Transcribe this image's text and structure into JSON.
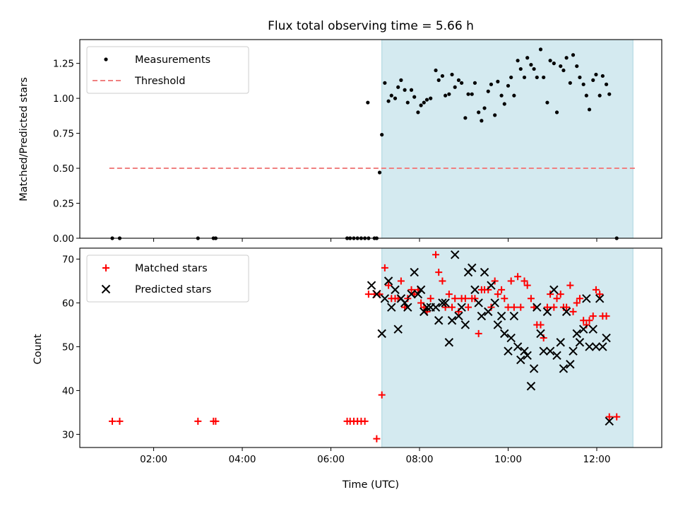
{
  "chart_data": [
    {
      "type": "scatter",
      "title": "Flux total observing time = 5.66 h",
      "xlabel": "",
      "ylabel": "Matched/Predicted stars",
      "xlim": [
        "00:20",
        "13:28"
      ],
      "ylim": [
        0,
        1.42
      ],
      "yticks": [
        "0.00",
        "0.25",
        "0.50",
        "0.75",
        "1.00",
        "1.25"
      ],
      "ytick_values": [
        0,
        0.25,
        0.5,
        0.75,
        1.0,
        1.25
      ],
      "xticks_values": [
        "02:00",
        "04:00",
        "06:00",
        "08:00",
        "10:00",
        "12:00"
      ],
      "xtick_labels_shown": false,
      "shaded_region": {
        "start": "07:09",
        "end": "12:49",
        "color": "#d4eaf0"
      },
      "legend": {
        "position": "top-left",
        "entries": [
          "Measurements",
          "Threshold"
        ]
      },
      "series": [
        {
          "name": "Measurements",
          "color": "#000000",
          "marker": "dot",
          "points": [
            [
              "01:04",
              0.0
            ],
            [
              "01:14",
              0.0
            ],
            [
              "03:00",
              0.0
            ],
            [
              "03:21",
              0.0
            ],
            [
              "03:24",
              0.0
            ],
            [
              "06:22",
              0.0
            ],
            [
              "06:26",
              0.0
            ],
            [
              "06:31",
              0.0
            ],
            [
              "06:36",
              0.0
            ],
            [
              "06:41",
              0.0
            ],
            [
              "06:46",
              0.0
            ],
            [
              "06:51",
              0.0
            ],
            [
              "06:59",
              0.0
            ],
            [
              "07:02",
              0.0
            ],
            [
              "06:50",
              0.97
            ],
            [
              "07:06",
              0.47
            ],
            [
              "07:09",
              0.74
            ],
            [
              "07:13",
              1.11
            ],
            [
              "07:18",
              0.98
            ],
            [
              "07:22",
              1.02
            ],
            [
              "07:27",
              1.0
            ],
            [
              "07:31",
              1.08
            ],
            [
              "07:35",
              1.13
            ],
            [
              "07:40",
              1.06
            ],
            [
              "07:44",
              0.97
            ],
            [
              "07:49",
              1.06
            ],
            [
              "07:53",
              1.01
            ],
            [
              "07:58",
              0.9
            ],
            [
              "08:02",
              0.95
            ],
            [
              "08:06",
              0.97
            ],
            [
              "08:10",
              0.99
            ],
            [
              "08:15",
              1.0
            ],
            [
              "08:22",
              1.2
            ],
            [
              "08:26",
              1.13
            ],
            [
              "08:31",
              1.16
            ],
            [
              "08:35",
              1.02
            ],
            [
              "08:40",
              1.03
            ],
            [
              "08:44",
              1.17
            ],
            [
              "08:48",
              1.08
            ],
            [
              "08:53",
              1.13
            ],
            [
              "08:57",
              1.11
            ],
            [
              "09:02",
              0.86
            ],
            [
              "09:06",
              1.03
            ],
            [
              "09:11",
              1.03
            ],
            [
              "09:15",
              1.11
            ],
            [
              "09:20",
              0.9
            ],
            [
              "09:24",
              0.84
            ],
            [
              "09:28",
              0.93
            ],
            [
              "09:33",
              1.05
            ],
            [
              "09:37",
              1.1
            ],
            [
              "09:42",
              0.88
            ],
            [
              "09:46",
              1.12
            ],
            [
              "09:51",
              1.02
            ],
            [
              "09:55",
              0.96
            ],
            [
              "10:00",
              1.09
            ],
            [
              "10:04",
              1.15
            ],
            [
              "10:08",
              1.02
            ],
            [
              "10:13",
              1.27
            ],
            [
              "10:17",
              1.21
            ],
            [
              "10:22",
              1.15
            ],
            [
              "10:26",
              1.29
            ],
            [
              "10:31",
              1.24
            ],
            [
              "10:35",
              1.21
            ],
            [
              "10:39",
              1.15
            ],
            [
              "10:44",
              1.35
            ],
            [
              "10:48",
              1.15
            ],
            [
              "10:53",
              0.97
            ],
            [
              "10:57",
              1.27
            ],
            [
              "11:02",
              1.25
            ],
            [
              "11:06",
              0.9
            ],
            [
              "11:11",
              1.23
            ],
            [
              "11:15",
              1.2
            ],
            [
              "11:19",
              1.29
            ],
            [
              "11:24",
              1.11
            ],
            [
              "11:28",
              1.31
            ],
            [
              "11:33",
              1.23
            ],
            [
              "11:37",
              1.15
            ],
            [
              "11:42",
              1.1
            ],
            [
              "11:46",
              1.02
            ],
            [
              "11:50",
              0.92
            ],
            [
              "11:55",
              1.13
            ],
            [
              "11:59",
              1.17
            ],
            [
              "12:04",
              1.02
            ],
            [
              "12:08",
              1.16
            ],
            [
              "12:13",
              1.1
            ],
            [
              "12:17",
              1.03
            ],
            [
              "12:27",
              0.0
            ]
          ]
        },
        {
          "name": "Threshold",
          "color": "#f08080",
          "style": "dashed",
          "points": [
            [
              "01:00",
              0.5
            ],
            [
              "12:52",
              0.5
            ]
          ]
        }
      ]
    },
    {
      "type": "scatter",
      "title": "",
      "xlabel": "Time (UTC)",
      "ylabel": "Count",
      "xlim": [
        "00:20",
        "13:28"
      ],
      "ylim": [
        27,
        72.5
      ],
      "yticks": [
        "30",
        "40",
        "50",
        "60",
        "70"
      ],
      "ytick_values": [
        30,
        40,
        50,
        60,
        70
      ],
      "xticks": [
        "02:00",
        "04:00",
        "06:00",
        "08:00",
        "10:00",
        "12:00"
      ],
      "shaded_region": {
        "start": "07:09",
        "end": "12:49",
        "color": "#d4eaf0"
      },
      "legend": {
        "position": "top-left",
        "entries": [
          "Matched stars",
          "Predicted stars"
        ]
      },
      "series": [
        {
          "name": "Matched stars",
          "color": "#ff0000",
          "marker": "plus",
          "points": [
            [
              "01:04",
              33
            ],
            [
              "01:14",
              33
            ],
            [
              "03:00",
              33
            ],
            [
              "03:21",
              33
            ],
            [
              "03:24",
              33
            ],
            [
              "06:22",
              33
            ],
            [
              "06:26",
              33
            ],
            [
              "06:31",
              33
            ],
            [
              "06:36",
              33
            ],
            [
              "06:41",
              33
            ],
            [
              "06:46",
              33
            ],
            [
              "06:51",
              62
            ],
            [
              "06:59",
              62
            ],
            [
              "07:02",
              29
            ],
            [
              "07:06",
              62
            ],
            [
              "07:09",
              39
            ],
            [
              "07:13",
              68
            ],
            [
              "07:18",
              64
            ],
            [
              "07:22",
              61
            ],
            [
              "07:27",
              61
            ],
            [
              "07:31",
              61
            ],
            [
              "07:35",
              65
            ],
            [
              "07:40",
              59
            ],
            [
              "07:44",
              61
            ],
            [
              "07:49",
              63
            ],
            [
              "07:53",
              62
            ],
            [
              "07:58",
              63
            ],
            [
              "08:02",
              60
            ],
            [
              "08:06",
              59
            ],
            [
              "08:10",
              58
            ],
            [
              "08:15",
              61
            ],
            [
              "08:22",
              71
            ],
            [
              "08:26",
              67
            ],
            [
              "08:31",
              65
            ],
            [
              "08:35",
              59
            ],
            [
              "08:40",
              62
            ],
            [
              "08:44",
              59
            ],
            [
              "08:48",
              61
            ],
            [
              "08:53",
              58
            ],
            [
              "08:57",
              61
            ],
            [
              "09:02",
              61
            ],
            [
              "09:06",
              59
            ],
            [
              "09:11",
              61
            ],
            [
              "09:15",
              61
            ],
            [
              "09:20",
              53
            ],
            [
              "09:24",
              63
            ],
            [
              "09:28",
              63
            ],
            [
              "09:33",
              63
            ],
            [
              "09:37",
              59
            ],
            [
              "09:42",
              65
            ],
            [
              "09:46",
              62
            ],
            [
              "09:51",
              63
            ],
            [
              "09:55",
              61
            ],
            [
              "10:00",
              59
            ],
            [
              "10:04",
              65
            ],
            [
              "10:08",
              59
            ],
            [
              "10:13",
              66
            ],
            [
              "10:17",
              59
            ],
            [
              "10:22",
              65
            ],
            [
              "10:26",
              64
            ],
            [
              "10:31",
              61
            ],
            [
              "10:35",
              59
            ],
            [
              "10:39",
              55
            ],
            [
              "10:44",
              55
            ],
            [
              "10:48",
              52
            ],
            [
              "10:53",
              59
            ],
            [
              "10:57",
              62
            ],
            [
              "11:02",
              59
            ],
            [
              "11:06",
              61
            ],
            [
              "11:11",
              62
            ],
            [
              "11:15",
              59
            ],
            [
              "11:19",
              59
            ],
            [
              "11:24",
              64
            ],
            [
              "11:28",
              58
            ],
            [
              "11:33",
              60
            ],
            [
              "11:37",
              61
            ],
            [
              "11:42",
              56
            ],
            [
              "11:46",
              55
            ],
            [
              "11:50",
              56
            ],
            [
              "11:55",
              57
            ],
            [
              "11:59",
              63
            ],
            [
              "12:04",
              62
            ],
            [
              "12:08",
              57
            ],
            [
              "12:13",
              57
            ],
            [
              "12:17",
              34
            ],
            [
              "12:27",
              34
            ]
          ]
        },
        {
          "name": "Predicted stars",
          "color": "#000000",
          "marker": "x",
          "points": [
            [
              "06:55",
              64
            ],
            [
              "07:02",
              62
            ],
            [
              "07:09",
              53
            ],
            [
              "07:13",
              61
            ],
            [
              "07:18",
              65
            ],
            [
              "07:22",
              59
            ],
            [
              "07:27",
              63
            ],
            [
              "07:31",
              54
            ],
            [
              "07:35",
              61
            ],
            [
              "07:40",
              60
            ],
            [
              "07:44",
              59
            ],
            [
              "07:49",
              62
            ],
            [
              "07:53",
              67
            ],
            [
              "07:58",
              62
            ],
            [
              "08:02",
              63
            ],
            [
              "08:06",
              58
            ],
            [
              "08:10",
              59
            ],
            [
              "08:15",
              59
            ],
            [
              "08:22",
              59
            ],
            [
              "08:26",
              56
            ],
            [
              "08:31",
              60
            ],
            [
              "08:35",
              60
            ],
            [
              "08:40",
              51
            ],
            [
              "08:44",
              56
            ],
            [
              "08:48",
              71
            ],
            [
              "08:53",
              57
            ],
            [
              "08:57",
              59
            ],
            [
              "09:02",
              55
            ],
            [
              "09:06",
              67
            ],
            [
              "09:11",
              68
            ],
            [
              "09:15",
              63
            ],
            [
              "09:20",
              60
            ],
            [
              "09:24",
              57
            ],
            [
              "09:28",
              67
            ],
            [
              "09:33",
              58
            ],
            [
              "09:37",
              64
            ],
            [
              "09:42",
              60
            ],
            [
              "09:46",
              55
            ],
            [
              "09:51",
              57
            ],
            [
              "09:55",
              53
            ],
            [
              "10:00",
              49
            ],
            [
              "10:04",
              52
            ],
            [
              "10:08",
              57
            ],
            [
              "10:13",
              50
            ],
            [
              "10:17",
              47
            ],
            [
              "10:22",
              49
            ],
            [
              "10:26",
              48
            ],
            [
              "10:31",
              41
            ],
            [
              "10:35",
              45
            ],
            [
              "10:39",
              59
            ],
            [
              "10:44",
              53
            ],
            [
              "10:48",
              49
            ],
            [
              "10:53",
              58
            ],
            [
              "10:57",
              49
            ],
            [
              "11:02",
              63
            ],
            [
              "11:06",
              48
            ],
            [
              "11:11",
              51
            ],
            [
              "11:15",
              45
            ],
            [
              "11:19",
              58
            ],
            [
              "11:24",
              46
            ],
            [
              "11:28",
              49
            ],
            [
              "11:33",
              53
            ],
            [
              "11:37",
              51
            ],
            [
              "11:42",
              54
            ],
            [
              "11:46",
              61
            ],
            [
              "11:50",
              50
            ],
            [
              "11:55",
              54
            ],
            [
              "11:59",
              50
            ],
            [
              "12:04",
              61
            ],
            [
              "12:08",
              50
            ],
            [
              "12:13",
              52
            ],
            [
              "12:17",
              33
            ]
          ]
        }
      ]
    }
  ]
}
